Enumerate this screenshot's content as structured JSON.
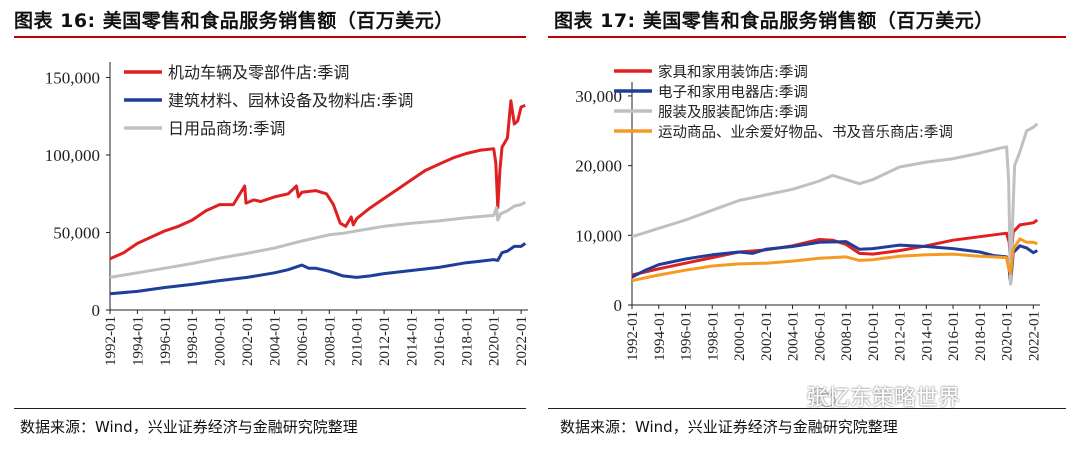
{
  "charts": [
    {
      "title": "图表 16:  美国零售和食品服务销售额（百万美元）",
      "source": "数据来源：Wind，兴业证券经济与金融研究院整理"
    },
    {
      "title": "图表 17:  美国零售和食品服务销售额（百万美元）",
      "source": "数据来源：Wind，兴业证券经济与金融研究院整理"
    }
  ],
  "watermark": "张忆东策略世界",
  "chart_data": [
    {
      "type": "line",
      "title": "图表 16:  美国零售和食品服务销售额（百万美元）",
      "xlabel": "",
      "ylabel": "",
      "ylim": [
        0,
        160000
      ],
      "yticks": [
        0,
        50000,
        100000,
        150000
      ],
      "ytick_labels": [
        "0",
        "50,000",
        "100,000",
        "150,000"
      ],
      "x_range": [
        1992.0,
        2022.5
      ],
      "xtick_labels": [
        "1992-01",
        "1994-01",
        "1996-01",
        "1998-01",
        "2000-01",
        "2002-01",
        "2004-01",
        "2006-01",
        "2008-01",
        "2010-01",
        "2012-01",
        "2014-01",
        "2016-01",
        "2018-01",
        "2020-01",
        "2022-01"
      ],
      "legend_position": "top-left",
      "series": [
        {
          "name": "机动车辆及零部件店:季调",
          "color": "#e02020",
          "points": [
            [
              1992.0,
              33000
            ],
            [
              1993.0,
              37000
            ],
            [
              1994.0,
              43000
            ],
            [
              1995.0,
              47000
            ],
            [
              1996.0,
              51000
            ],
            [
              1997.0,
              54000
            ],
            [
              1998.0,
              58000
            ],
            [
              1999.0,
              64000
            ],
            [
              2000.0,
              68000
            ],
            [
              2001.0,
              68000
            ],
            [
              2001.83,
              80000
            ],
            [
              2001.92,
              69000
            ],
            [
              2002.5,
              71000
            ],
            [
              2003.0,
              70000
            ],
            [
              2004.0,
              73000
            ],
            [
              2005.0,
              75000
            ],
            [
              2005.6,
              80000
            ],
            [
              2005.75,
              73000
            ],
            [
              2006.0,
              76000
            ],
            [
              2007.0,
              77000
            ],
            [
              2007.8,
              75000
            ],
            [
              2008.3,
              68000
            ],
            [
              2008.8,
              56000
            ],
            [
              2009.2,
              54000
            ],
            [
              2009.6,
              60000
            ],
            [
              2009.75,
              55000
            ],
            [
              2010.0,
              59000
            ],
            [
              2011.0,
              66000
            ],
            [
              2012.0,
              72000
            ],
            [
              2013.0,
              78000
            ],
            [
              2014.0,
              84000
            ],
            [
              2015.0,
              90000
            ],
            [
              2016.0,
              94000
            ],
            [
              2017.0,
              98000
            ],
            [
              2018.0,
              101000
            ],
            [
              2019.0,
              103000
            ],
            [
              2020.0,
              104000
            ],
            [
              2020.15,
              95000
            ],
            [
              2020.3,
              66000
            ],
            [
              2020.45,
              90000
            ],
            [
              2020.6,
              105000
            ],
            [
              2021.0,
              111000
            ],
            [
              2021.25,
              135000
            ],
            [
              2021.5,
              120000
            ],
            [
              2021.75,
              122000
            ],
            [
              2022.0,
              131000
            ],
            [
              2022.3,
              132000
            ]
          ]
        },
        {
          "name": "建筑材料、园林设备及物料店:季调",
          "color": "#1f3e99",
          "points": [
            [
              1992.0,
              10500
            ],
            [
              1994.0,
              12000
            ],
            [
              1996.0,
              14500
            ],
            [
              1998.0,
              16500
            ],
            [
              2000.0,
              19000
            ],
            [
              2002.0,
              21000
            ],
            [
              2004.0,
              24000
            ],
            [
              2005.0,
              26000
            ],
            [
              2006.0,
              29000
            ],
            [
              2006.5,
              27000
            ],
            [
              2007.0,
              27000
            ],
            [
              2008.0,
              25000
            ],
            [
              2009.0,
              22000
            ],
            [
              2010.0,
              21000
            ],
            [
              2011.0,
              22000
            ],
            [
              2012.0,
              23500
            ],
            [
              2014.0,
              25500
            ],
            [
              2016.0,
              27500
            ],
            [
              2018.0,
              30500
            ],
            [
              2019.0,
              31500
            ],
            [
              2020.0,
              32500
            ],
            [
              2020.3,
              32000
            ],
            [
              2020.6,
              37000
            ],
            [
              2021.0,
              38000
            ],
            [
              2021.5,
              41000
            ],
            [
              2022.0,
              41000
            ],
            [
              2022.3,
              43000
            ]
          ]
        },
        {
          "name": "日用品商场:季调",
          "color": "#c0c0c0",
          "points": [
            [
              1992.0,
              21000
            ],
            [
              1994.0,
              24000
            ],
            [
              1996.0,
              27000
            ],
            [
              1998.0,
              30000
            ],
            [
              2000.0,
              33500
            ],
            [
              2002.0,
              36500
            ],
            [
              2004.0,
              40000
            ],
            [
              2006.0,
              44500
            ],
            [
              2008.0,
              48500
            ],
            [
              2009.0,
              49500
            ],
            [
              2010.0,
              51000
            ],
            [
              2012.0,
              54000
            ],
            [
              2014.0,
              56000
            ],
            [
              2016.0,
              57500
            ],
            [
              2018.0,
              59500
            ],
            [
              2020.0,
              61000
            ],
            [
              2020.2,
              66000
            ],
            [
              2020.3,
              58000
            ],
            [
              2020.5,
              62000
            ],
            [
              2021.0,
              64000
            ],
            [
              2021.5,
              67000
            ],
            [
              2022.0,
              68000
            ],
            [
              2022.3,
              69500
            ]
          ]
        }
      ]
    },
    {
      "type": "line",
      "title": "图表 17:  美国零售和食品服务销售额（百万美元）",
      "xlabel": "",
      "ylabel": "",
      "ylim": [
        0,
        32000
      ],
      "yticks": [
        0,
        10000,
        20000,
        30000
      ],
      "ytick_labels": [
        "0",
        "10,000",
        "20,000",
        "30,000"
      ],
      "x_range": [
        1992.0,
        2022.5
      ],
      "xtick_labels": [
        "1992-01",
        "1994-01",
        "1996-01",
        "1998-01",
        "2000-01",
        "2002-01",
        "2004-01",
        "2006-01",
        "2008-01",
        "2010-01",
        "2012-01",
        "2014-01",
        "2016-01",
        "2018-01",
        "2020-01",
        "2022-01"
      ],
      "legend_position": "top-left",
      "series": [
        {
          "name": "家具和家用装饰店:季调",
          "color": "#e02020",
          "points": [
            [
              1992.0,
              4300
            ],
            [
              1994.0,
              5200
            ],
            [
              1996.0,
              6000
            ],
            [
              1998.0,
              6800
            ],
            [
              2000.0,
              7600
            ],
            [
              2002.0,
              7900
            ],
            [
              2004.0,
              8500
            ],
            [
              2006.0,
              9400
            ],
            [
              2007.0,
              9300
            ],
            [
              2008.0,
              8700
            ],
            [
              2009.0,
              7400
            ],
            [
              2010.0,
              7300
            ],
            [
              2012.0,
              7800
            ],
            [
              2014.0,
              8500
            ],
            [
              2016.0,
              9300
            ],
            [
              2018.0,
              9800
            ],
            [
              2020.0,
              10300
            ],
            [
              2020.2,
              9000
            ],
            [
              2020.3,
              6000
            ],
            [
              2020.5,
              10500
            ],
            [
              2021.0,
              11500
            ],
            [
              2022.0,
              11800
            ],
            [
              2022.3,
              12200
            ]
          ]
        },
        {
          "name": "电子和家用电器店:季调",
          "color": "#1f3e99",
          "points": [
            [
              1992.0,
              4000
            ],
            [
              1993.0,
              5000
            ],
            [
              1994.0,
              5800
            ],
            [
              1996.0,
              6600
            ],
            [
              1998.0,
              7200
            ],
            [
              2000.0,
              7600
            ],
            [
              2001.0,
              7400
            ],
            [
              2002.0,
              8000
            ],
            [
              2004.0,
              8400
            ],
            [
              2006.0,
              9000
            ],
            [
              2008.0,
              9100
            ],
            [
              2009.0,
              8000
            ],
            [
              2010.0,
              8100
            ],
            [
              2012.0,
              8600
            ],
            [
              2014.0,
              8400
            ],
            [
              2016.0,
              8100
            ],
            [
              2018.0,
              7600
            ],
            [
              2019.0,
              7100
            ],
            [
              2020.0,
              6900
            ],
            [
              2020.2,
              5000
            ],
            [
              2020.3,
              3200
            ],
            [
              2020.5,
              7500
            ],
            [
              2021.0,
              8500
            ],
            [
              2021.5,
              8200
            ],
            [
              2022.0,
              7500
            ],
            [
              2022.3,
              7800
            ]
          ]
        },
        {
          "name": "服装及服装配饰店:季调",
          "color": "#c0c0c0",
          "points": [
            [
              1992.0,
              9800
            ],
            [
              1994.0,
              11000
            ],
            [
              1996.0,
              12200
            ],
            [
              1998.0,
              13600
            ],
            [
              2000.0,
              15000
            ],
            [
              2002.0,
              15800
            ],
            [
              2004.0,
              16600
            ],
            [
              2006.0,
              17800
            ],
            [
              2007.0,
              18600
            ],
            [
              2008.0,
              18000
            ],
            [
              2009.0,
              17400
            ],
            [
              2010.0,
              18000
            ],
            [
              2012.0,
              19800
            ],
            [
              2014.0,
              20500
            ],
            [
              2016.0,
              21000
            ],
            [
              2018.0,
              21800
            ],
            [
              2019.5,
              22500
            ],
            [
              2020.0,
              22700
            ],
            [
              2020.15,
              18000
            ],
            [
              2020.3,
              3000
            ],
            [
              2020.45,
              12000
            ],
            [
              2020.6,
              20000
            ],
            [
              2021.0,
              22000
            ],
            [
              2021.5,
              25000
            ],
            [
              2022.0,
              25500
            ],
            [
              2022.3,
              26000
            ]
          ]
        },
        {
          "name": "运动商品、业余爱好物品、书及音乐商店:季调",
          "color": "#f59a23",
          "points": [
            [
              1992.0,
              3500
            ],
            [
              1994.0,
              4300
            ],
            [
              1996.0,
              5000
            ],
            [
              1998.0,
              5600
            ],
            [
              2000.0,
              5900
            ],
            [
              2002.0,
              6000
            ],
            [
              2004.0,
              6300
            ],
            [
              2006.0,
              6700
            ],
            [
              2008.0,
              6900
            ],
            [
              2009.0,
              6400
            ],
            [
              2010.0,
              6500
            ],
            [
              2012.0,
              7000
            ],
            [
              2014.0,
              7200
            ],
            [
              2016.0,
              7300
            ],
            [
              2018.0,
              7000
            ],
            [
              2019.0,
              6900
            ],
            [
              2020.0,
              6800
            ],
            [
              2020.2,
              5000
            ],
            [
              2020.3,
              4500
            ],
            [
              2020.5,
              8000
            ],
            [
              2021.0,
              9500
            ],
            [
              2021.5,
              9000
            ],
            [
              2022.0,
              9000
            ],
            [
              2022.3,
              8800
            ]
          ]
        }
      ]
    }
  ]
}
